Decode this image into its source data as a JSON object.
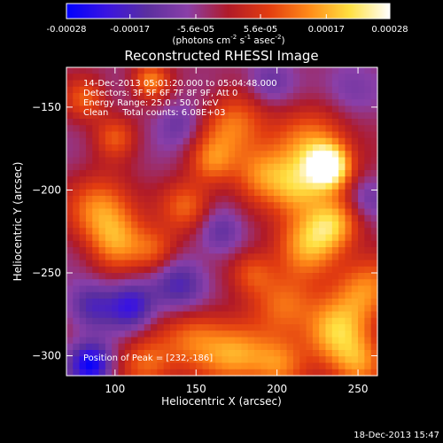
{
  "chart_data": {
    "type": "heatmap",
    "title": "Reconstructed RHESSI Image",
    "colorbar": {
      "ticks": [
        "-0.00028",
        "-0.00017",
        "-5.6e-05",
        "5.6e-05",
        "0.00017",
        "0.00028"
      ],
      "tick_values": [
        -0.00028,
        -0.00017,
        -5.6e-05,
        5.6e-05,
        0.00017,
        0.00028
      ],
      "range": [
        -0.00028,
        0.00028
      ],
      "unit_main": "(photons cm",
      "unit_exp1": "-2",
      "unit_mid": " s",
      "unit_exp2": "-1",
      "unit_mid2": " asec",
      "unit_exp3": "-2",
      "unit_end": ")",
      "colormap": [
        "#0000ff",
        "#3a14e0",
        "#5b2f9f",
        "#8a3fa8",
        "#b01a28",
        "#e23c10",
        "#ff8a18",
        "#ffe040",
        "#ffffff"
      ]
    },
    "xlabel": "Heliocentric X (arcsec)",
    "ylabel": "Heliocentric Y (arcsec)",
    "xlim": [
      70,
      262
    ],
    "ylim": [
      -312,
      -126
    ],
    "xticks": [
      100,
      150,
      200,
      250
    ],
    "yticks": [
      -150,
      -200,
      -250,
      -300
    ],
    "annotations": {
      "time": "14-Dec-2013 05:01:20.000 to 05:04:48.000",
      "detectors": "Detectors: 3F 5F 6F 7F 8F 9F, Att 0",
      "energy": "Energy Range: 25.0 - 50.0 keV",
      "clean": "Clean     Total counts: 6.08E+03",
      "peak": "Position of Peak = [232,-186]"
    },
    "peak": [
      232,
      -186
    ],
    "blobs": [
      {
        "x": 232,
        "y": -186,
        "amp": 1.0,
        "r": 9
      },
      {
        "x": 222,
        "y": -175,
        "amp": 0.6,
        "r": 18
      },
      {
        "x": 212,
        "y": -200,
        "amp": 0.55,
        "r": 12
      },
      {
        "x": 190,
        "y": -190,
        "amp": 0.5,
        "r": 12
      },
      {
        "x": 173,
        "y": -162,
        "amp": 0.55,
        "r": 14
      },
      {
        "x": 160,
        "y": -183,
        "amp": 0.45,
        "r": 10
      },
      {
        "x": 145,
        "y": -210,
        "amp": 0.5,
        "r": 11
      },
      {
        "x": 125,
        "y": -237,
        "amp": 0.45,
        "r": 10
      },
      {
        "x": 92,
        "y": -212,
        "amp": 0.65,
        "r": 14
      },
      {
        "x": 102,
        "y": -232,
        "amp": 0.5,
        "r": 12
      },
      {
        "x": 220,
        "y": -232,
        "amp": 0.7,
        "r": 14
      },
      {
        "x": 235,
        "y": -220,
        "amp": 0.55,
        "r": 11
      },
      {
        "x": 205,
        "y": -270,
        "amp": 0.5,
        "r": 13
      },
      {
        "x": 185,
        "y": -250,
        "amp": 0.45,
        "r": 10
      },
      {
        "x": 235,
        "y": -285,
        "amp": 0.7,
        "r": 14
      },
      {
        "x": 255,
        "y": -260,
        "amp": 0.6,
        "r": 14
      },
      {
        "x": 150,
        "y": -290,
        "amp": 0.55,
        "r": 14
      },
      {
        "x": 175,
        "y": -300,
        "amp": 0.6,
        "r": 13
      },
      {
        "x": 120,
        "y": -305,
        "amp": 0.5,
        "r": 12
      },
      {
        "x": 200,
        "y": -305,
        "amp": 0.55,
        "r": 12
      },
      {
        "x": 250,
        "y": -305,
        "amp": 0.6,
        "r": 12
      },
      {
        "x": 122,
        "y": -134,
        "amp": 0.55,
        "r": 8
      },
      {
        "x": 82,
        "y": -145,
        "amp": 0.45,
        "r": 9
      },
      {
        "x": 100,
        "y": -168,
        "amp": 0.4,
        "r": 9
      },
      {
        "x": 85,
        "y": -305,
        "amp": -0.85,
        "r": 9
      },
      {
        "x": 110,
        "y": -270,
        "amp": -0.6,
        "r": 10
      },
      {
        "x": 140,
        "y": -258,
        "amp": -0.5,
        "r": 12
      },
      {
        "x": 85,
        "y": -270,
        "amp": -0.45,
        "r": 10
      },
      {
        "x": 165,
        "y": -225,
        "amp": -0.35,
        "r": 10
      },
      {
        "x": 245,
        "y": -140,
        "amp": -0.3,
        "r": 12
      },
      {
        "x": 195,
        "y": -135,
        "amp": -0.35,
        "r": 10
      },
      {
        "x": 140,
        "y": -160,
        "amp": -0.3,
        "r": 10
      },
      {
        "x": 255,
        "y": -205,
        "amp": -0.3,
        "r": 9
      }
    ]
  },
  "footer": {
    "date": "18-Dec-2013 15:47"
  }
}
